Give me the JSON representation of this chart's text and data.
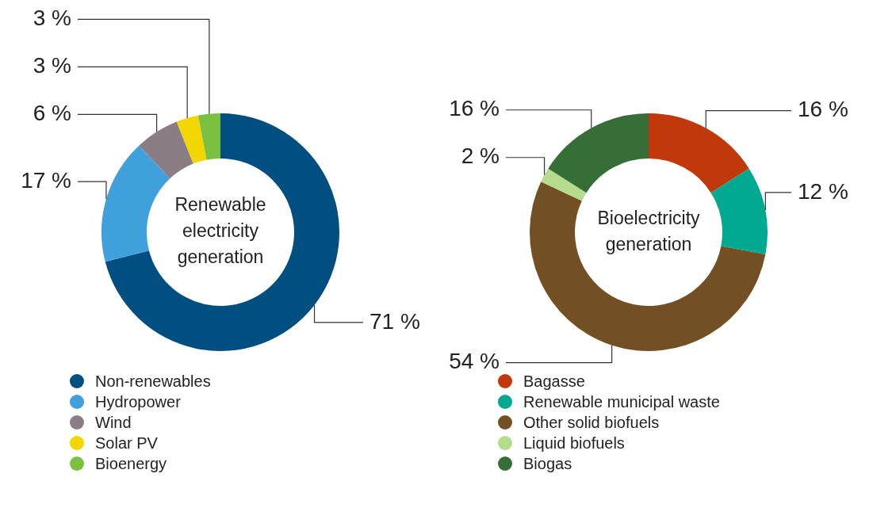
{
  "chart_data": [
    {
      "type": "donut",
      "title": "Renewable electricity generation",
      "categories": [
        "Non-renewables",
        "Hydropower",
        "Wind",
        "Solar PV",
        "Bioenergy"
      ],
      "values": [
        71,
        17,
        6,
        3,
        3
      ],
      "colors": [
        "#004f80",
        "#3fa0dc",
        "#8a7e86",
        "#f2d600",
        "#7ac142"
      ],
      "value_labels": [
        "71 %",
        "17 %",
        "6 %",
        "3 %",
        "3 %"
      ],
      "legend": "bottom"
    },
    {
      "type": "donut",
      "title": "Bioelectricity generation",
      "categories": [
        "Bagasse",
        "Renewable municipal waste",
        "Other solid biofuels",
        "Liquid biofuels",
        "Biogas"
      ],
      "values": [
        16,
        12,
        54,
        2,
        16
      ],
      "colors": [
        "#c1390b",
        "#00a98f",
        "#735024",
        "#b5dc8c",
        "#366e38"
      ],
      "value_labels": [
        "16 %",
        "12 %",
        "54 %",
        "2 %",
        "16 %"
      ],
      "legend": "bottom"
    }
  ]
}
